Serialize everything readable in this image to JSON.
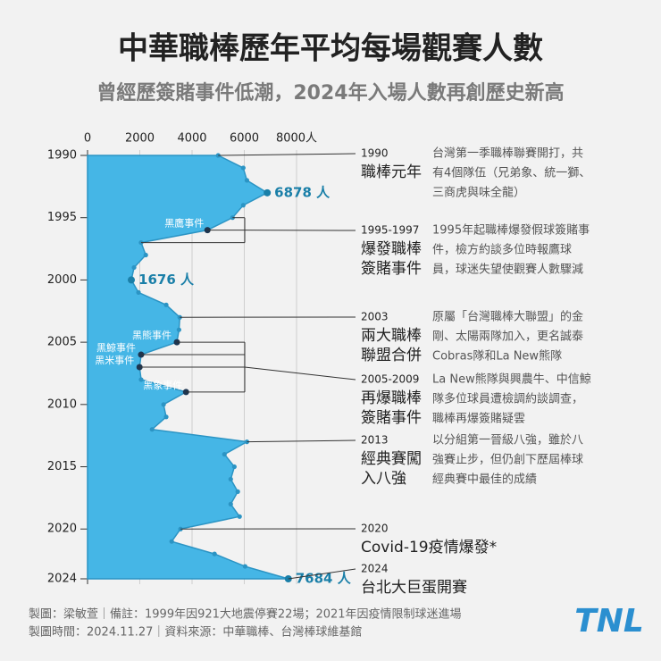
{
  "chart_data": {
    "type": "area",
    "title": "中華職棒歷年平均每場觀賽人數",
    "subtitle": "曾經歷簽賭事件低潮，2024年入場人數再創歷史新高",
    "orientation": "horizontal",
    "x": [
      1990,
      1991,
      1992,
      1993,
      1994,
      1995,
      1996,
      1997,
      1998,
      1999,
      2000,
      2001,
      2002,
      2003,
      2004,
      2005,
      2006,
      2007,
      2008,
      2009,
      2010,
      2011,
      2012,
      2013,
      2014,
      2015,
      2016,
      2017,
      2018,
      2019,
      2020,
      2021,
      2022,
      2023,
      2024
    ],
    "values": [
      5000,
      5960,
      6100,
      6878,
      5960,
      5550,
      4590,
      2050,
      2230,
      1780,
      1676,
      1950,
      3010,
      3530,
      3500,
      3420,
      2050,
      1990,
      2050,
      3770,
      2910,
      3010,
      2470,
      6100,
      5240,
      5620,
      5480,
      5750,
      5480,
      5820,
      3560,
      3220,
      4860,
      6030,
      7684
    ],
    "value_labels": [
      null,
      null,
      null,
      "6878 人",
      null,
      null,
      null,
      null,
      null,
      null,
      "1676 人",
      null,
      null,
      null,
      null,
      null,
      null,
      null,
      null,
      null,
      null,
      null,
      null,
      null,
      null,
      null,
      null,
      null,
      null,
      null,
      null,
      null,
      null,
      null,
      "7684 人"
    ],
    "color": "#45b6e6",
    "xlim": [
      0,
      8000
    ],
    "xticks": [
      0,
      2000,
      4000,
      6000,
      {
        "value": 8000,
        "label": "8000人"
      }
    ],
    "ylim": [
      1990,
      2024
    ],
    "yticks": [
      1990,
      1995,
      2000,
      2005,
      2010,
      2015,
      2020,
      2024
    ],
    "grid": true,
    "incidents": [
      {
        "label": "黑鷹事件",
        "year": 1996
      },
      {
        "label": "黑熊事件",
        "year": 2005
      },
      {
        "label": "黑鯨事件",
        "year": 2006
      },
      {
        "label": "黑米事件",
        "year": 2007
      },
      {
        "label": "黑象事件",
        "year": 2009
      }
    ],
    "events": [
      {
        "year": "1990",
        "title": [
          "職棒元年"
        ],
        "description": [
          "台灣第一季職棒聯賽開打，共",
          "有4個隊伍（兄弟象、統一獅、",
          "三商虎與味全龍）"
        ]
      },
      {
        "year": "1995-1997",
        "title": [
          "爆發職棒",
          "簽賭事件"
        ],
        "description": [
          "1995年起職棒爆發假球簽賭事",
          "件，檢方約談多位時報鷹球",
          "員，球迷失望使觀賽人數驟減"
        ]
      },
      {
        "year": "2003",
        "title": [
          "兩大職棒",
          "聯盟合併"
        ],
        "description": [
          "原屬「台灣職棒大聯盟」的金",
          "剛、太陽兩隊加入，更名誠泰",
          "Cobras隊和La New熊隊"
        ]
      },
      {
        "year": "2005-2009",
        "title": [
          "再爆職棒",
          "簽賭事件"
        ],
        "description": [
          "La New熊隊與興農牛、中信鯨",
          "隊多位球員遭檢調約談調查，",
          "職棒再爆簽賭疑雲"
        ]
      },
      {
        "year": "2013",
        "title": [
          "經典賽闖",
          "入八強"
        ],
        "description": [
          "以分組第一晉級八強，雖於八",
          "強賽止步，但仍創下歷屆棒球",
          "經典賽中最佳的成績"
        ]
      },
      {
        "year": "2020",
        "title": [
          "Covid-19疫情爆發*"
        ]
      },
      {
        "year": "2024",
        "title": [
          "台北大巨蛋開賽"
        ]
      }
    ]
  },
  "footer": [
    "製圖：梁敏萱｜備註：1999年因921大地震停賽22場；2021年因疫情限制球迷進場",
    "製圖時間：2024.11.27｜資料來源：中華職棒、台灣棒球維基館"
  ],
  "logo": "TNL"
}
